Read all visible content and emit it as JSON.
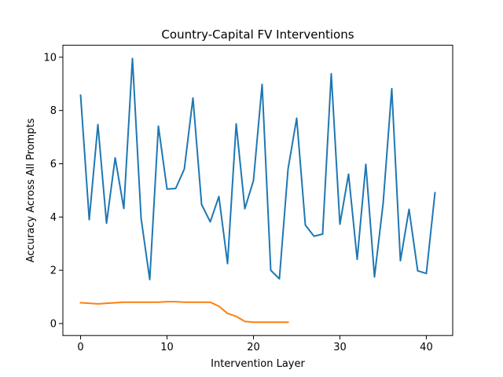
{
  "chart_data": {
    "type": "line",
    "title": "Country-Capital FV Interventions",
    "xlabel": "Intervention Layer",
    "ylabel": "Accuracy Across All Prompts",
    "xlim": [
      -2.05,
      43.05
    ],
    "ylim": [
      -0.45,
      10.45
    ],
    "xticks": [
      0,
      10,
      20,
      30,
      40
    ],
    "yticks": [
      0,
      2,
      4,
      6,
      8,
      10
    ],
    "grid": false,
    "legend": "none",
    "series": [
      {
        "color": "#1f77b4",
        "x": [
          0,
          1,
          2,
          3,
          4,
          5,
          6,
          7,
          8,
          9,
          10,
          11,
          12,
          13,
          14,
          15,
          16,
          17,
          18,
          19,
          20,
          21,
          22,
          23,
          24,
          25,
          26,
          27,
          28,
          29,
          30,
          31,
          32,
          33,
          34,
          35,
          36,
          37,
          38,
          39,
          40,
          41
        ],
        "y": [
          8.57,
          3.9,
          7.47,
          3.77,
          6.22,
          4.32,
          9.95,
          3.95,
          1.65,
          7.41,
          5.05,
          5.07,
          5.8,
          8.47,
          4.47,
          3.82,
          4.77,
          2.25,
          7.5,
          4.31,
          5.37,
          8.98,
          2.0,
          1.68,
          5.8,
          7.71,
          3.7,
          3.28,
          3.36,
          9.38,
          3.73,
          5.61,
          2.41,
          5.98,
          1.75,
          4.51,
          8.82,
          2.36,
          4.29,
          1.98,
          1.88,
          4.91
        ]
      },
      {
        "color": "#ff7f0e",
        "x": [
          0,
          1,
          2,
          3,
          4,
          5,
          6,
          7,
          8,
          9,
          10,
          11,
          12,
          13,
          14,
          15,
          16,
          17,
          18,
          19,
          20,
          21,
          22,
          23,
          24
        ],
        "y": [
          0.78,
          0.76,
          0.74,
          0.76,
          0.78,
          0.8,
          0.8,
          0.8,
          0.8,
          0.8,
          0.82,
          0.82,
          0.8,
          0.8,
          0.8,
          0.8,
          0.65,
          0.38,
          0.27,
          0.08,
          0.05,
          0.05,
          0.05,
          0.05,
          0.05
        ]
      }
    ]
  }
}
